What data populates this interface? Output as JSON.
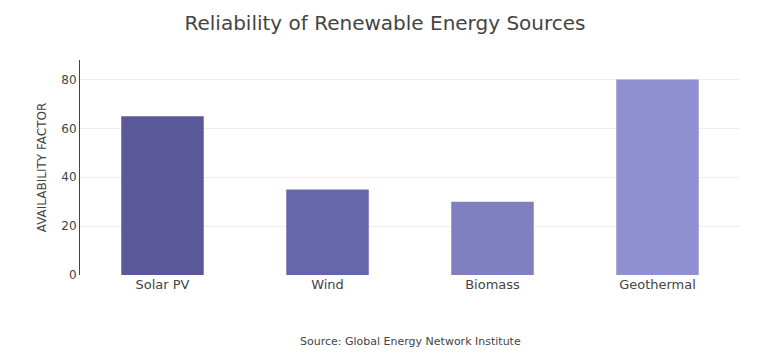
{
  "chart_data": {
    "type": "bar",
    "title": "Reliability of Renewable Energy Sources",
    "categories": [
      "Solar PV",
      "Wind",
      "Biomass",
      "Geothermal"
    ],
    "values": [
      65,
      35,
      30,
      80
    ],
    "colors": [
      "#5a5898",
      "#6666aa",
      "#8080c0",
      "#9090d0"
    ],
    "ylabel": "AVAILABILITY FACTOR",
    "annotation": "Source: Global Energy Network Institute",
    "ylim": [
      0,
      88
    ],
    "yticks": [
      0,
      20,
      40,
      60,
      80
    ],
    "grid": true
  }
}
